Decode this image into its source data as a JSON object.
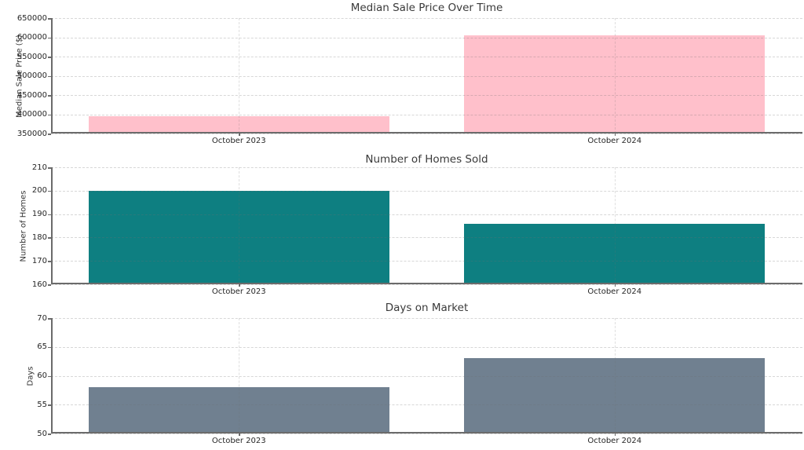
{
  "figure": {
    "background": "#ffffff",
    "text_color": "#333333",
    "spine_color": "#6b6b6b"
  },
  "chart_data": [
    {
      "type": "bar",
      "title": "Median Sale Price Over Time",
      "ylabel": "Median Sale Price ($)",
      "xlabel": "",
      "categories": [
        "October 2023",
        "October 2024"
      ],
      "values": [
        395000,
        605000
      ],
      "bar_color": "#ffc0cb",
      "ylim": [
        350000,
        650000
      ],
      "yticks": [
        350000,
        400000,
        450000,
        500000,
        550000,
        600000,
        650000
      ],
      "grid": true,
      "legend_position": "none"
    },
    {
      "type": "bar",
      "title": "Number of Homes Sold",
      "ylabel": "Number of Homes",
      "xlabel": "",
      "categories": [
        "October 2023",
        "October 2024"
      ],
      "values": [
        200,
        186
      ],
      "bar_color": "#0e7f81",
      "ylim": [
        160,
        210
      ],
      "yticks": [
        160,
        170,
        180,
        190,
        200,
        210
      ],
      "grid": true,
      "legend_position": "none"
    },
    {
      "type": "bar",
      "title": "Days on Market",
      "ylabel": "Days",
      "xlabel": "",
      "categories": [
        "October 2023",
        "October 2024"
      ],
      "values": [
        58,
        63
      ],
      "bar_color": "#708090",
      "ylim": [
        50,
        70
      ],
      "yticks": [
        50,
        55,
        60,
        65,
        70
      ],
      "grid": true,
      "legend_position": "none"
    }
  ]
}
